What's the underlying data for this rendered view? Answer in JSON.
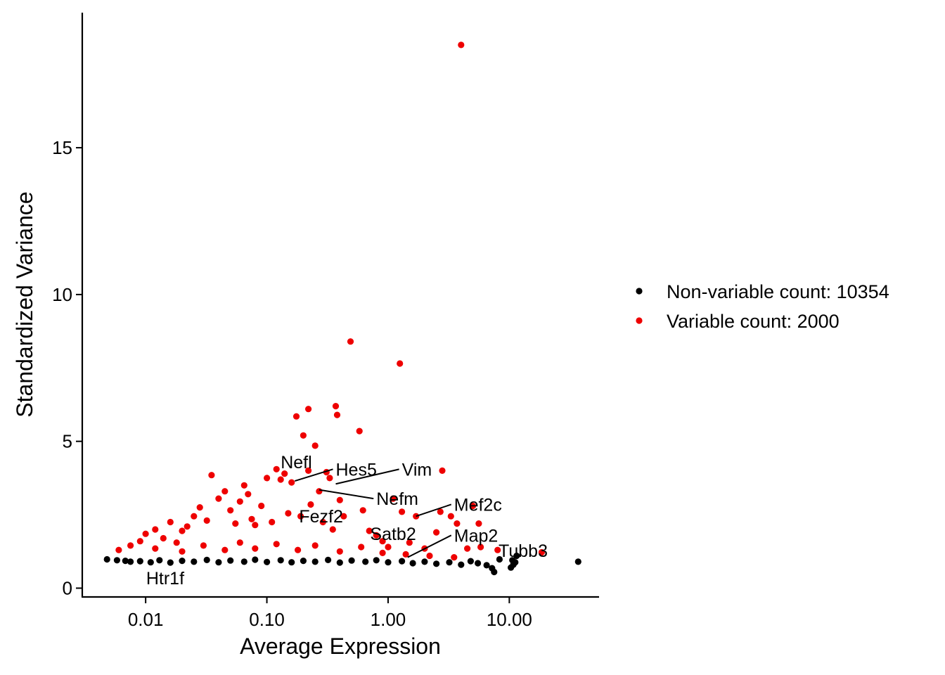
{
  "chart_data": {
    "type": "scatter",
    "x_scale": "log10",
    "xlabel": "Average Expression",
    "ylabel": "Standardized Variance",
    "xlim": [
      0.003,
      55
    ],
    "ylim": [
      -0.3,
      19.6
    ],
    "x_ticks": [
      {
        "value": 0.01,
        "label": "0.01"
      },
      {
        "value": 0.1,
        "label": "0.10"
      },
      {
        "value": 1,
        "label": "1.00"
      },
      {
        "value": 10,
        "label": "10.00"
      }
    ],
    "y_ticks": [
      {
        "value": 0,
        "label": "0"
      },
      {
        "value": 5,
        "label": "5"
      },
      {
        "value": 10,
        "label": "10"
      },
      {
        "value": 15,
        "label": "15"
      }
    ],
    "grid": false,
    "legend_position": "right",
    "legend": [
      {
        "label": "Non-variable count: 10354",
        "color": "#000000"
      },
      {
        "label": "Variable count: 2000",
        "color": "#ee0000"
      }
    ],
    "series": [
      {
        "name": "Non-variable count: 10354",
        "color": "#000000",
        "points": [
          [
            0.0048,
            0.98
          ],
          [
            0.0058,
            0.95
          ],
          [
            0.0068,
            0.93
          ],
          [
            0.0075,
            0.9
          ],
          [
            0.009,
            0.92
          ],
          [
            0.011,
            0.88
          ],
          [
            0.013,
            0.95
          ],
          [
            0.016,
            0.87
          ],
          [
            0.02,
            0.93
          ],
          [
            0.025,
            0.9
          ],
          [
            0.032,
            0.96
          ],
          [
            0.04,
            0.88
          ],
          [
            0.05,
            0.94
          ],
          [
            0.065,
            0.9
          ],
          [
            0.08,
            0.97
          ],
          [
            0.1,
            0.89
          ],
          [
            0.13,
            0.95
          ],
          [
            0.16,
            0.88
          ],
          [
            0.2,
            0.93
          ],
          [
            0.25,
            0.9
          ],
          [
            0.32,
            0.96
          ],
          [
            0.4,
            0.87
          ],
          [
            0.5,
            0.94
          ],
          [
            0.65,
            0.9
          ],
          [
            0.8,
            0.95
          ],
          [
            1.0,
            0.88
          ],
          [
            1.3,
            0.92
          ],
          [
            1.6,
            0.85
          ],
          [
            2.0,
            0.9
          ],
          [
            2.5,
            0.83
          ],
          [
            3.2,
            0.88
          ],
          [
            4.0,
            0.8
          ],
          [
            4.8,
            0.92
          ],
          [
            5.5,
            0.85
          ],
          [
            6.5,
            0.78
          ],
          [
            7.2,
            0.68
          ],
          [
            7.5,
            0.55
          ],
          [
            8.3,
            0.98
          ],
          [
            10.3,
            0.7
          ],
          [
            10.8,
            0.8
          ],
          [
            11.2,
            0.88
          ],
          [
            10.6,
            0.95
          ],
          [
            11.5,
            1.1
          ],
          [
            37,
            0.9
          ]
        ]
      },
      {
        "name": "Variable count: 2000",
        "color": "#ee0000",
        "points": [
          [
            0.006,
            1.3
          ],
          [
            0.0075,
            1.45
          ],
          [
            0.009,
            1.6
          ],
          [
            0.01,
            1.85
          ],
          [
            0.012,
            2.0
          ],
          [
            0.014,
            1.7
          ],
          [
            0.016,
            2.25
          ],
          [
            0.018,
            1.55
          ],
          [
            0.02,
            1.95
          ],
          [
            0.022,
            2.1
          ],
          [
            0.025,
            2.45
          ],
          [
            0.028,
            2.75
          ],
          [
            0.032,
            2.3
          ],
          [
            0.035,
            3.85
          ],
          [
            0.04,
            3.05
          ],
          [
            0.045,
            3.3
          ],
          [
            0.05,
            2.65
          ],
          [
            0.055,
            2.2
          ],
          [
            0.06,
            2.95
          ],
          [
            0.065,
            3.5
          ],
          [
            0.07,
            3.2
          ],
          [
            0.075,
            2.35
          ],
          [
            0.08,
            2.15
          ],
          [
            0.09,
            2.8
          ],
          [
            0.1,
            3.75
          ],
          [
            0.11,
            2.25
          ],
          [
            0.12,
            4.05
          ],
          [
            0.13,
            3.7
          ],
          [
            0.14,
            3.9
          ],
          [
            0.15,
            2.55
          ],
          [
            0.16,
            3.6
          ],
          [
            0.175,
            5.85
          ],
          [
            0.19,
            2.45
          ],
          [
            0.2,
            5.2
          ],
          [
            0.22,
            6.1
          ],
          [
            0.22,
            4.0
          ],
          [
            0.23,
            2.85
          ],
          [
            0.25,
            4.85
          ],
          [
            0.27,
            3.3
          ],
          [
            0.29,
            2.25
          ],
          [
            0.31,
            3.95
          ],
          [
            0.33,
            3.75
          ],
          [
            0.35,
            2.0
          ],
          [
            0.37,
            6.2
          ],
          [
            0.38,
            5.9
          ],
          [
            0.4,
            3.0
          ],
          [
            0.43,
            2.45
          ],
          [
            0.49,
            8.4
          ],
          [
            0.58,
            5.35
          ],
          [
            0.62,
            2.65
          ],
          [
            0.7,
            1.95
          ],
          [
            0.8,
            1.8
          ],
          [
            0.9,
            1.6
          ],
          [
            1.0,
            1.4
          ],
          [
            1.1,
            3.05
          ],
          [
            1.25,
            7.65
          ],
          [
            1.3,
            2.6
          ],
          [
            1.5,
            1.55
          ],
          [
            1.7,
            2.45
          ],
          [
            2.0,
            1.35
          ],
          [
            2.5,
            1.9
          ],
          [
            2.7,
            2.6
          ],
          [
            2.8,
            4.0
          ],
          [
            3.3,
            2.45
          ],
          [
            3.7,
            2.2
          ],
          [
            4.0,
            18.5
          ],
          [
            4.5,
            1.35
          ],
          [
            5.0,
            2.8
          ],
          [
            5.6,
            2.2
          ],
          [
            5.8,
            1.4
          ],
          [
            8.0,
            1.3
          ],
          [
            18.5,
            1.22
          ],
          [
            0.012,
            1.35
          ],
          [
            0.02,
            1.25
          ],
          [
            0.03,
            1.45
          ],
          [
            0.045,
            1.3
          ],
          [
            0.06,
            1.55
          ],
          [
            0.08,
            1.35
          ],
          [
            0.12,
            1.5
          ],
          [
            0.18,
            1.3
          ],
          [
            0.25,
            1.45
          ],
          [
            0.4,
            1.25
          ],
          [
            0.6,
            1.4
          ],
          [
            0.9,
            1.2
          ],
          [
            1.4,
            1.15
          ],
          [
            2.2,
            1.1
          ],
          [
            3.5,
            1.05
          ]
        ]
      }
    ],
    "annotations": [
      {
        "text": "Nefl",
        "x": 0.16,
        "y": 3.6,
        "label_x": 0.175,
        "label_y": 4.3,
        "line": false
      },
      {
        "text": "Hes5",
        "x": 0.17,
        "y": 3.65,
        "label_x": 0.37,
        "label_y": 4.05,
        "line": true
      },
      {
        "text": "Vim",
        "x": 0.37,
        "y": 3.55,
        "label_x": 1.3,
        "label_y": 4.05,
        "line": true
      },
      {
        "text": "Nefm",
        "x": 0.27,
        "y": 3.35,
        "label_x": 0.8,
        "label_y": 3.05,
        "line": true
      },
      {
        "text": "Fezf2",
        "x": 0.28,
        "y": 2.6,
        "label_x": 0.28,
        "label_y": 2.45,
        "line": false
      },
      {
        "text": "Mef2c",
        "x": 1.7,
        "y": 2.45,
        "label_x": 3.5,
        "label_y": 2.85,
        "line": true
      },
      {
        "text": "Satb2",
        "x": 1.1,
        "y": 1.9,
        "label_x": 1.1,
        "label_y": 1.85,
        "line": false
      },
      {
        "text": "Map2",
        "x": 1.45,
        "y": 1.05,
        "label_x": 3.5,
        "label_y": 1.8,
        "line": true
      },
      {
        "text": "Tubb3",
        "x": 18.5,
        "y": 1.22,
        "label_x": 13,
        "label_y": 1.28,
        "line": false
      },
      {
        "text": "Htr1f",
        "x": 0.009,
        "y": 0.9,
        "label_x": 0.0145,
        "label_y": 0.35,
        "line": false
      }
    ]
  }
}
